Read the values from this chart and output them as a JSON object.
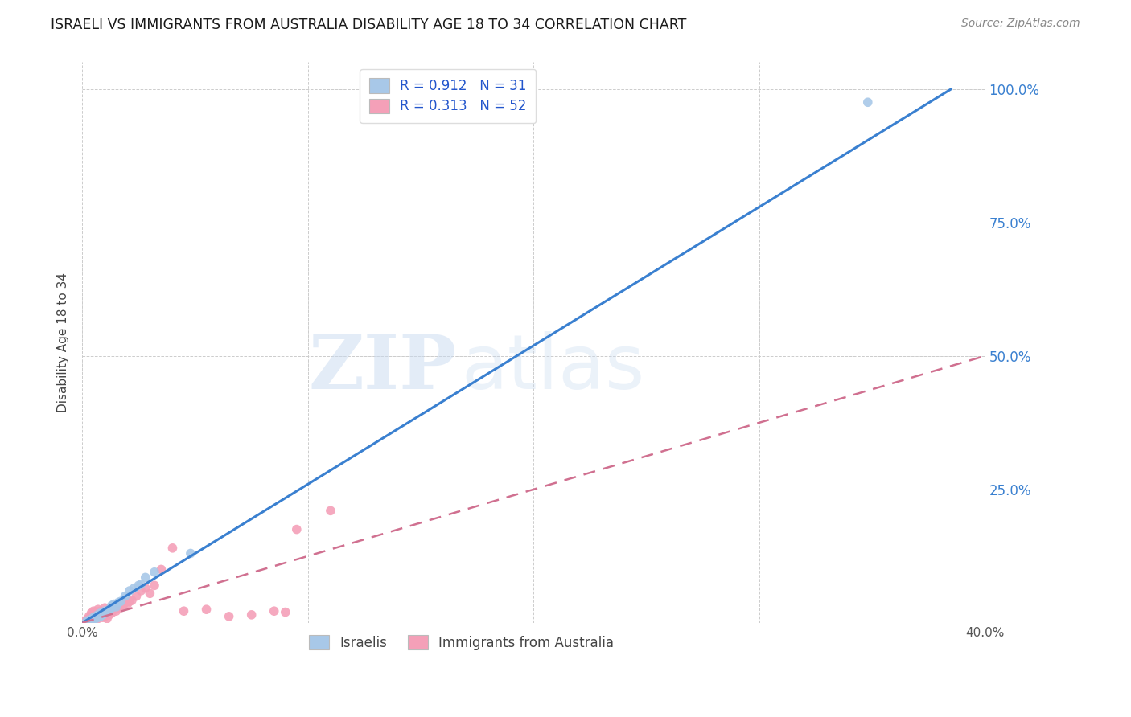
{
  "title": "ISRAELI VS IMMIGRANTS FROM AUSTRALIA DISABILITY AGE 18 TO 34 CORRELATION CHART",
  "source": "Source: ZipAtlas.com",
  "ylabel": "Disability Age 18 to 34",
  "xlim": [
    0.0,
    0.4
  ],
  "ylim": [
    0.0,
    1.05
  ],
  "israeli_color": "#a8c8e8",
  "immigrant_color": "#f4a0b8",
  "israeli_R": 0.912,
  "israeli_N": 31,
  "immigrant_R": 0.313,
  "immigrant_N": 52,
  "israeli_line_color": "#3a80d0",
  "immigrant_line_color": "#d07090",
  "israeli_line_x": [
    0.0,
    0.385
  ],
  "israeli_line_y": [
    0.0,
    1.0
  ],
  "immigrant_line_x": [
    0.0,
    0.4
  ],
  "immigrant_line_y": [
    0.0,
    0.5
  ],
  "watermark_zip": "ZIP",
  "watermark_atlas": "atlas",
  "background_color": "#ffffff",
  "grid_color": "#cccccc",
  "israeli_scatter_x": [
    0.002,
    0.003,
    0.004,
    0.005,
    0.005,
    0.006,
    0.006,
    0.007,
    0.007,
    0.008,
    0.008,
    0.009,
    0.01,
    0.01,
    0.011,
    0.012,
    0.013,
    0.013,
    0.014,
    0.015,
    0.016,
    0.017,
    0.019,
    0.021,
    0.023,
    0.025,
    0.026,
    0.028,
    0.032,
    0.048,
    0.348
  ],
  "israeli_scatter_y": [
    0.003,
    0.005,
    0.006,
    0.008,
    0.01,
    0.008,
    0.012,
    0.01,
    0.015,
    0.012,
    0.018,
    0.015,
    0.018,
    0.022,
    0.022,
    0.025,
    0.028,
    0.032,
    0.035,
    0.03,
    0.038,
    0.04,
    0.05,
    0.06,
    0.065,
    0.07,
    0.072,
    0.085,
    0.095,
    0.13,
    0.975
  ],
  "immigrant_scatter_x": [
    0.001,
    0.002,
    0.003,
    0.003,
    0.004,
    0.004,
    0.005,
    0.005,
    0.005,
    0.006,
    0.006,
    0.007,
    0.007,
    0.007,
    0.008,
    0.008,
    0.009,
    0.009,
    0.01,
    0.01,
    0.01,
    0.011,
    0.011,
    0.012,
    0.012,
    0.013,
    0.013,
    0.014,
    0.015,
    0.016,
    0.016,
    0.017,
    0.018,
    0.019,
    0.02,
    0.021,
    0.022,
    0.024,
    0.026,
    0.028,
    0.03,
    0.032,
    0.035,
    0.04,
    0.045,
    0.055,
    0.065,
    0.075,
    0.085,
    0.09,
    0.095,
    0.11
  ],
  "immigrant_scatter_y": [
    0.003,
    0.006,
    0.008,
    0.012,
    0.01,
    0.018,
    0.008,
    0.015,
    0.022,
    0.01,
    0.02,
    0.008,
    0.015,
    0.025,
    0.012,
    0.022,
    0.01,
    0.02,
    0.012,
    0.018,
    0.028,
    0.008,
    0.022,
    0.015,
    0.025,
    0.018,
    0.03,
    0.025,
    0.022,
    0.028,
    0.035,
    0.03,
    0.032,
    0.038,
    0.035,
    0.04,
    0.042,
    0.05,
    0.06,
    0.065,
    0.055,
    0.07,
    0.1,
    0.14,
    0.022,
    0.025,
    0.012,
    0.015,
    0.022,
    0.02,
    0.175,
    0.21
  ]
}
